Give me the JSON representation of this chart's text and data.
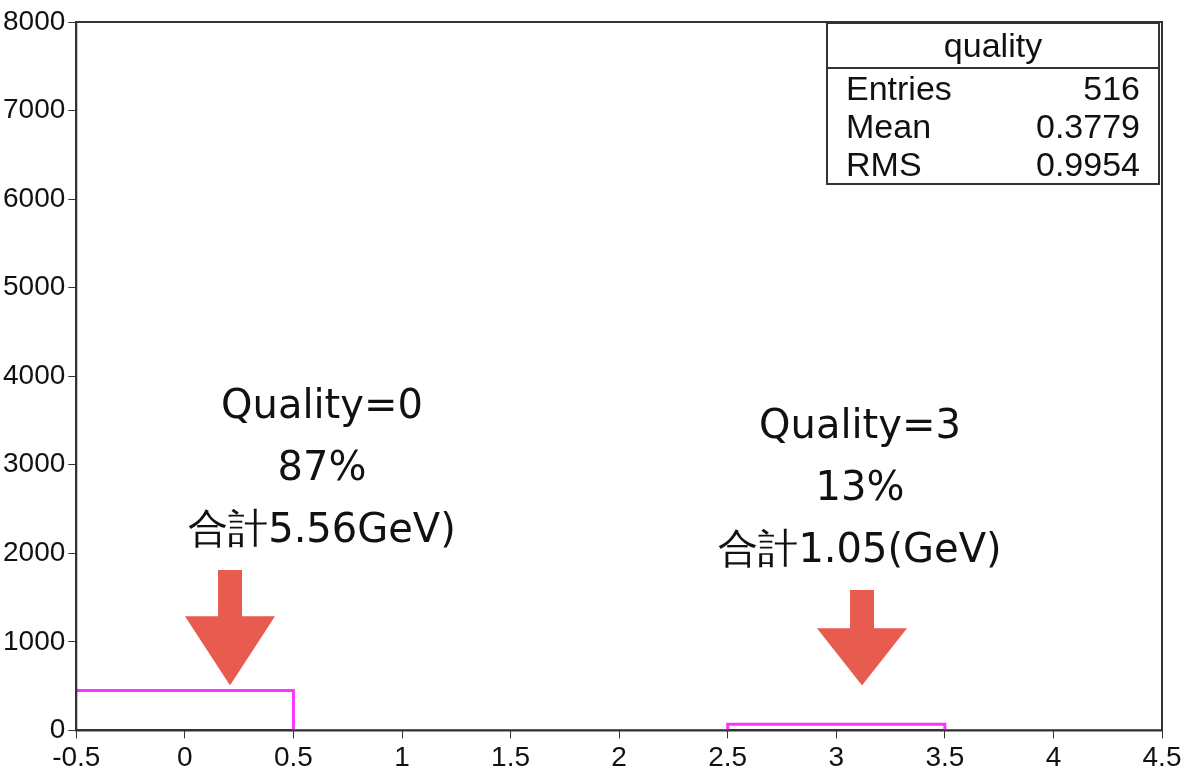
{
  "chart_data": {
    "type": "histogram",
    "bins": [
      -0.5,
      0.5,
      1.5,
      2.5,
      3.5,
      4.5
    ],
    "values": [
      450,
      0,
      0,
      70,
      0
    ],
    "color": "#ff33ff",
    "xlim": [
      -0.5,
      4.5
    ],
    "xticks": [
      -0.5,
      0,
      0.5,
      1,
      1.5,
      2,
      2.5,
      3,
      3.5,
      4,
      4.5
    ],
    "ylim": [
      0,
      8000
    ],
    "yticks": [
      0,
      1000,
      2000,
      3000,
      4000,
      5000,
      6000,
      7000,
      8000
    ],
    "grid": false,
    "legend": false,
    "annotations": [
      "quality",
      "Entries",
      "516",
      "Mean",
      "0.3779",
      "RMS",
      "0.9954",
      "Quality=0\n87%\n合計5.56GeV)",
      "Quality=3\n13%\n合計1.05(GeV)"
    ]
  }
}
